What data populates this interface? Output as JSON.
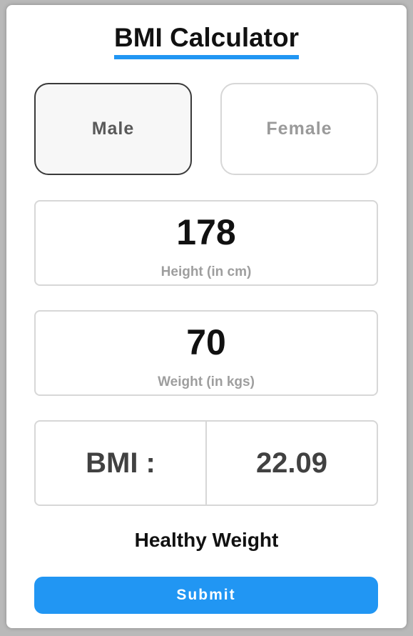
{
  "app": {
    "title": "BMI Calculator",
    "accent_color": "#2196f3"
  },
  "gender": {
    "selected": "Male",
    "options": [
      {
        "label": "Male"
      },
      {
        "label": "Female"
      }
    ]
  },
  "height": {
    "value": "178",
    "label": "Height (in cm)"
  },
  "weight": {
    "value": "70",
    "label": "Weight (in kgs)"
  },
  "result": {
    "bmi_label": "BMI :",
    "bmi_value": "22.09",
    "status": "Healthy Weight"
  },
  "actions": {
    "submit_label": "Submit"
  }
}
